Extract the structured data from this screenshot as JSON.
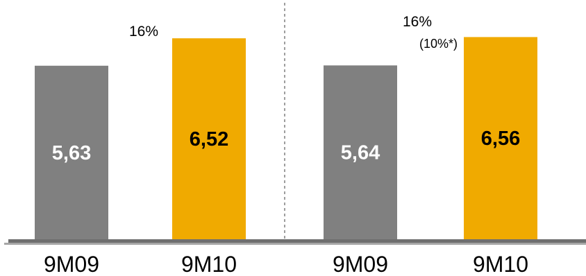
{
  "chart_data": [
    {
      "type": "bar",
      "categories": [
        "9M09",
        "9M10"
      ],
      "values": [
        5.63,
        6.52
      ],
      "value_labels": [
        "5,63",
        "6,52"
      ],
      "growth_label": "16%",
      "growth_sublabel": "",
      "ylim": [
        0,
        7.2
      ],
      "grid": false,
      "colors": [
        "#808080",
        "#F0AA00"
      ],
      "value_label_colors": [
        "#ffffff",
        "#000000"
      ]
    },
    {
      "type": "bar",
      "categories": [
        "9M09",
        "9M10"
      ],
      "values": [
        5.64,
        6.56
      ],
      "value_labels": [
        "5,64",
        "6,56"
      ],
      "growth_label": "16%",
      "growth_sublabel": "(10%*)",
      "ylim": [
        0,
        7.2
      ],
      "grid": false,
      "colors": [
        "#808080",
        "#F0AA00"
      ],
      "value_label_colors": [
        "#ffffff",
        "#000000"
      ]
    }
  ],
  "colors": {
    "baseline": "#6f6f6f",
    "divider": "#7f7f7f"
  }
}
